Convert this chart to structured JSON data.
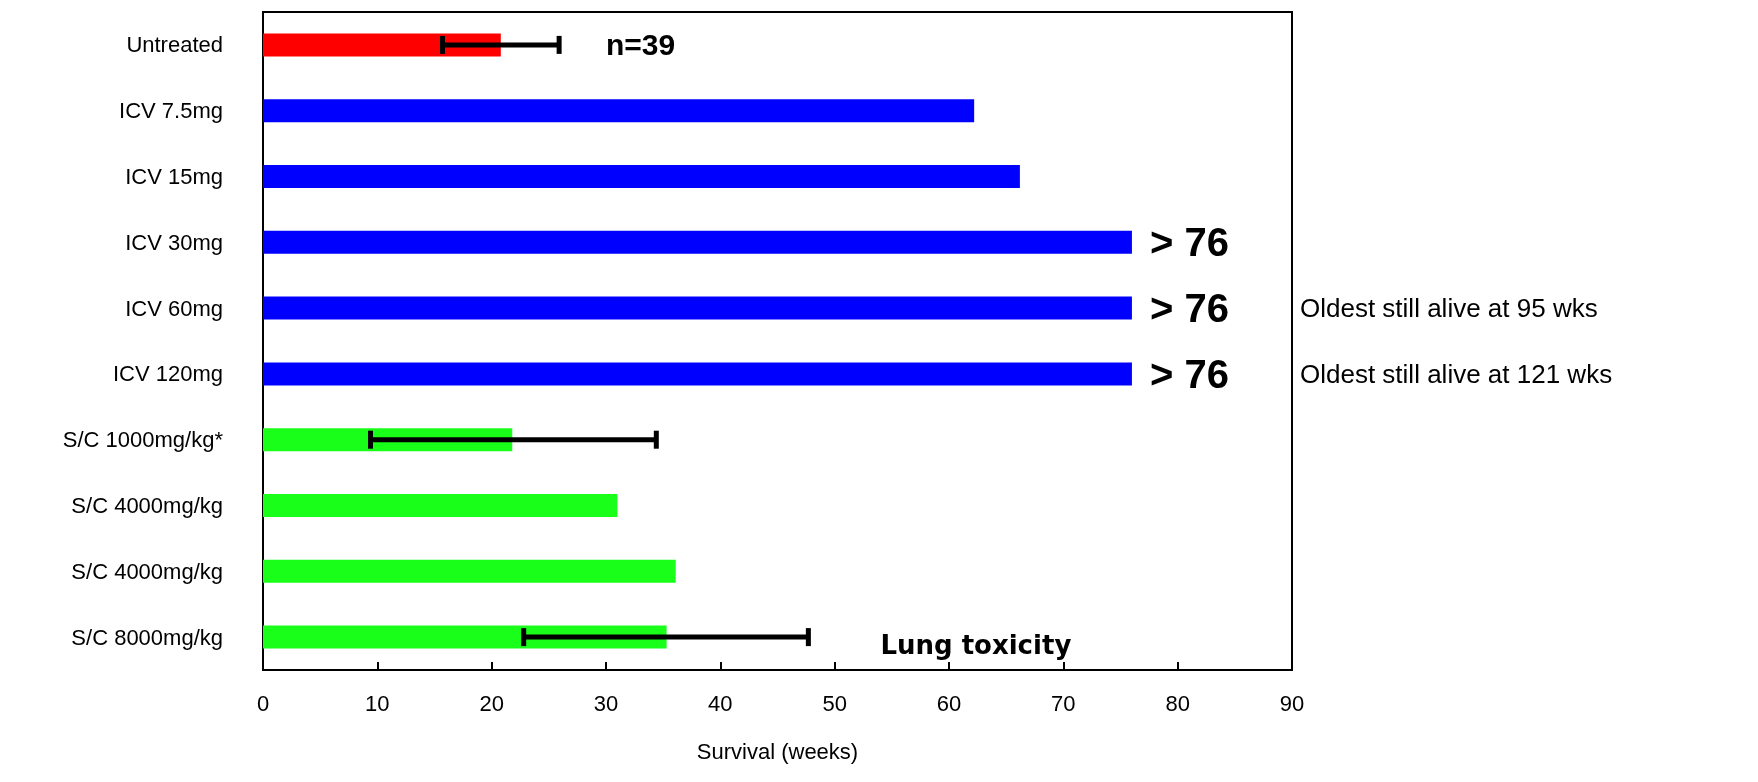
{
  "chart_data": {
    "type": "bar",
    "orientation": "horizontal",
    "xlabel": "Survival (weeks)",
    "categories": [
      "Untreated",
      "ICV 7.5mg",
      "ICV 15mg",
      "ICV 30mg",
      "ICV 60mg",
      "ICV 120mg",
      "S/C 1000mg/kg*",
      "S/C 4000mg/kg",
      "S/C 4000mg/kg",
      "S/C 8000mg/kg"
    ],
    "values": [
      20.8,
      62.2,
      66.2,
      76,
      76,
      76,
      21.8,
      31,
      36.1,
      35.3
    ],
    "colors": [
      "#ff0000",
      "#0000ff",
      "#0000ff",
      "#0000ff",
      "#0000ff",
      "#0000ff",
      "#19ff19",
      "#19ff19",
      "#19ff19",
      "#19ff19"
    ],
    "errors": [
      [
        15.7,
        25.9
      ],
      null,
      null,
      null,
      null,
      null,
      [
        9.4,
        34.4
      ],
      null,
      null,
      [
        22.8,
        47.7
      ]
    ],
    "xlim": [
      0,
      90
    ],
    "xticks": [
      0,
      10,
      20,
      30,
      40,
      50,
      60,
      70,
      80,
      90
    ],
    "grid": false,
    "annotations": [
      "n=39",
      "> 76",
      "> 76",
      "> 76",
      "Oldest still alive at 95 wks",
      "Oldest still alive at 121 wks",
      "Lung toxicity"
    ]
  }
}
